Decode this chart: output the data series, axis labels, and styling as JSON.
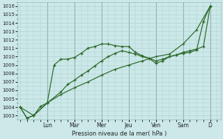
{
  "background_color": "#cce8e8",
  "grid_color_minor": "#aacccc",
  "grid_color_major": "#88aaaa",
  "line_color": "#2d6a2d",
  "ylabel": "Pression niveau de la mer( hPa )",
  "ylim": [
    1002.5,
    1016.5
  ],
  "yticks": [
    1003,
    1004,
    1005,
    1006,
    1007,
    1008,
    1009,
    1010,
    1011,
    1012,
    1013,
    1014,
    1015,
    1016
  ],
  "x_day_labels": [
    "Lun",
    "Mar",
    "Mer",
    "Jeu",
    "Ven",
    "Sam",
    "D"
  ],
  "x_day_positions": [
    2,
    4,
    6,
    8,
    10,
    12,
    14
  ],
  "xlim": [
    -0.2,
    14.8
  ],
  "line1_x": [
    0,
    0.5,
    1,
    2,
    2.5,
    3,
    3.5,
    4,
    4.5,
    5,
    5.5,
    6,
    6.5,
    7,
    7.5,
    8,
    8.5,
    9,
    9.5,
    10,
    10.5,
    11,
    11.5,
    12,
    12.5,
    13,
    13.5,
    14
  ],
  "line1_y": [
    1004,
    1002.7,
    1003,
    1004.5,
    1009,
    1009.7,
    1009.7,
    1009.9,
    1010.4,
    1011.0,
    1011.2,
    1011.5,
    1011.5,
    1011.3,
    1011.2,
    1011.2,
    1010.5,
    1010.1,
    1009.8,
    1009.2,
    1009.5,
    1010.0,
    1010.2,
    1010.4,
    1010.5,
    1010.8,
    1014.2,
    1016.0
  ],
  "line2_x": [
    0,
    0.5,
    1,
    1.5,
    2,
    3,
    3.5,
    4,
    4.5,
    5,
    5.5,
    6,
    6.5,
    7,
    7.5,
    8,
    8.5,
    9,
    9.5,
    10,
    10.5,
    11,
    11.5,
    12,
    12.5,
    13,
    13.5,
    14
  ],
  "line2_y": [
    1004,
    1002.7,
    1003,
    1004.1,
    1004.5,
    1005.8,
    1006.7,
    1007.2,
    1007.8,
    1008.3,
    1008.9,
    1009.5,
    1010.0,
    1010.4,
    1010.7,
    1010.5,
    1010.3,
    1010.0,
    1009.8,
    1009.5,
    1009.7,
    1010.0,
    1010.2,
    1010.5,
    1010.7,
    1010.9,
    1011.2,
    1016.0
  ],
  "line3_x": [
    0,
    1,
    2,
    3,
    4,
    5,
    6,
    7,
    8,
    9,
    10,
    11,
    12,
    13,
    14
  ],
  "line3_y": [
    1004,
    1003.0,
    1004.5,
    1005.5,
    1006.3,
    1007.0,
    1007.8,
    1008.5,
    1009.0,
    1009.5,
    1010.0,
    1010.3,
    1011.5,
    1013.2,
    1016.0
  ]
}
